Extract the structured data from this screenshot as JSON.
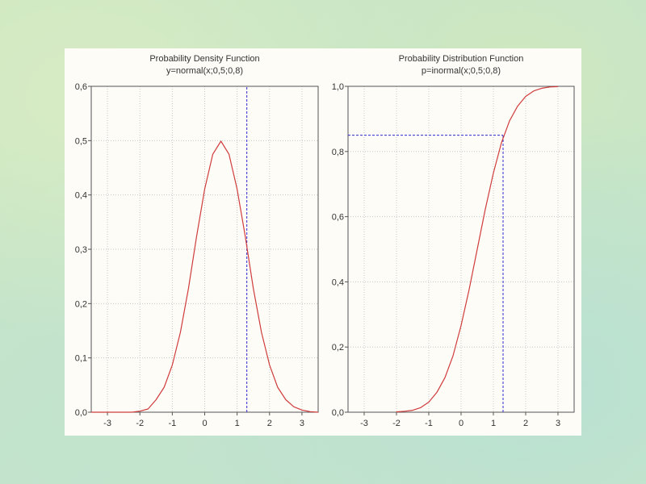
{
  "chart_data": [
    {
      "type": "line",
      "title": "Probability Density Function",
      "subtitle": "y=normal(x;0,5;0,8)",
      "xlabel": "",
      "ylabel": "",
      "xlim": [
        -3.5,
        3.5
      ],
      "ylim": [
        0,
        0.6
      ],
      "x_ticks": [
        -3,
        -2,
        -1,
        0,
        1,
        2,
        3
      ],
      "x_tick_labels": [
        "-3",
        "-2",
        "-1",
        "0",
        "1",
        "2",
        "3"
      ],
      "y_ticks": [
        0,
        0.1,
        0.2,
        0.3,
        0.4,
        0.5,
        0.6
      ],
      "y_tick_labels": [
        "0,0",
        "0,1",
        "0,2",
        "0,3",
        "0,4",
        "0,5",
        "0,6"
      ],
      "grid": true,
      "series": [
        {
          "color": "#d03c3c",
          "x": [
            -3.5,
            -3.25,
            -3,
            -2.75,
            -2.5,
            -2.25,
            -2,
            -1.75,
            -1.5,
            -1.25,
            -1,
            -0.75,
            -0.5,
            -0.25,
            0,
            0.25,
            0.5,
            0.75,
            1,
            1.25,
            1.5,
            1.75,
            2,
            2.25,
            2.5,
            2.75,
            3,
            3.25,
            3.5
          ],
          "y": [
            0.0,
            0.0,
            0.0,
            0.0,
            0.0,
            0.0,
            0.002,
            0.006,
            0.023,
            0.046,
            0.087,
            0.147,
            0.228,
            0.324,
            0.411,
            0.475,
            0.499,
            0.475,
            0.411,
            0.324,
            0.228,
            0.147,
            0.087,
            0.046,
            0.023,
            0.01,
            0.004,
            0.001,
            0.0
          ]
        }
      ],
      "reference_lines": [
        {
          "orientation": "vertical",
          "x": 1.3,
          "color": "#2a2ad0",
          "style": "dashed"
        }
      ]
    },
    {
      "type": "line",
      "title": "Probability Distribution Function",
      "subtitle": "p=inormal(x;0,5;0,8)",
      "xlabel": "",
      "ylabel": "",
      "xlim": [
        -3.5,
        3.5
      ],
      "ylim": [
        0,
        1.0
      ],
      "x_ticks": [
        -3,
        -2,
        -1,
        0,
        1,
        2,
        3
      ],
      "x_tick_labels": [
        "-3",
        "-2",
        "-1",
        "0",
        "1",
        "2",
        "3"
      ],
      "y_ticks": [
        0,
        0.2,
        0.4,
        0.6,
        0.8,
        1.0
      ],
      "y_tick_labels": [
        "0,0",
        "0,2",
        "0,4",
        "0,6",
        "0,8",
        "1,0"
      ],
      "grid": true,
      "series": [
        {
          "color": "#d03c3c",
          "x": [
            -2,
            -1.75,
            -1.5,
            -1.25,
            -1,
            -0.75,
            -0.5,
            -0.25,
            0,
            0.25,
            0.5,
            0.75,
            1,
            1.25,
            1.5,
            1.75,
            2,
            2.25,
            2.5,
            2.75,
            3
          ],
          "y": [
            0.001,
            0.003,
            0.006,
            0.014,
            0.031,
            0.061,
            0.106,
            0.173,
            0.266,
            0.377,
            0.5,
            0.623,
            0.734,
            0.827,
            0.894,
            0.939,
            0.969,
            0.986,
            0.994,
            0.998,
            0.999
          ]
        }
      ],
      "reference_lines": [
        {
          "orientation": "vertical",
          "x": 1.3,
          "y_to": 0.85,
          "color": "#2a2ad0",
          "style": "dashed"
        },
        {
          "orientation": "horizontal",
          "y": 0.85,
          "x_to": 1.3,
          "color": "#2a2ad0",
          "style": "dashed"
        }
      ]
    }
  ]
}
